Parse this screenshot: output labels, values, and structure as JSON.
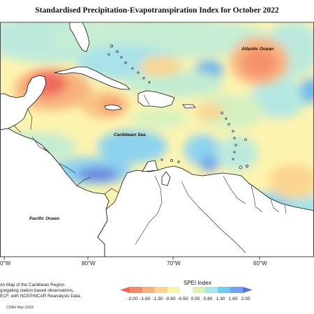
{
  "title": "Standardised Precipitation-Evapotranspiration Index for October 2022",
  "ocean_labels": {
    "atlantic": "Atlantic Ocean",
    "caribbean": "Caribbean Sea",
    "pacific": "Pacific Ocean"
  },
  "longitude_labels": [
    "0°W",
    "80°W",
    "70°W",
    "60°W"
  ],
  "footnote_lines": [
    "on Map of the Caribbean Region.",
    "gregating station based observations,",
    "ECF, with NCEP/NCAR Reanalysis Data."
  ],
  "credit": "CIMH Mar-2023",
  "legend": {
    "title": "SPEI Index",
    "ticks": [
      "-2.00",
      "-1.60",
      "-1.30",
      "-0.80",
      "-0.50",
      "0.50",
      "0.80",
      "1.30",
      "1.60",
      "2.00"
    ],
    "colors": [
      "#f0615a",
      "#f4896a",
      "#f8b27e",
      "#fbd58f",
      "#fdf3a8",
      "#ffffff",
      "#d9f2b4",
      "#a8e6ec",
      "#6fcbee",
      "#6fa2ef",
      "#5a74dc"
    ]
  }
}
